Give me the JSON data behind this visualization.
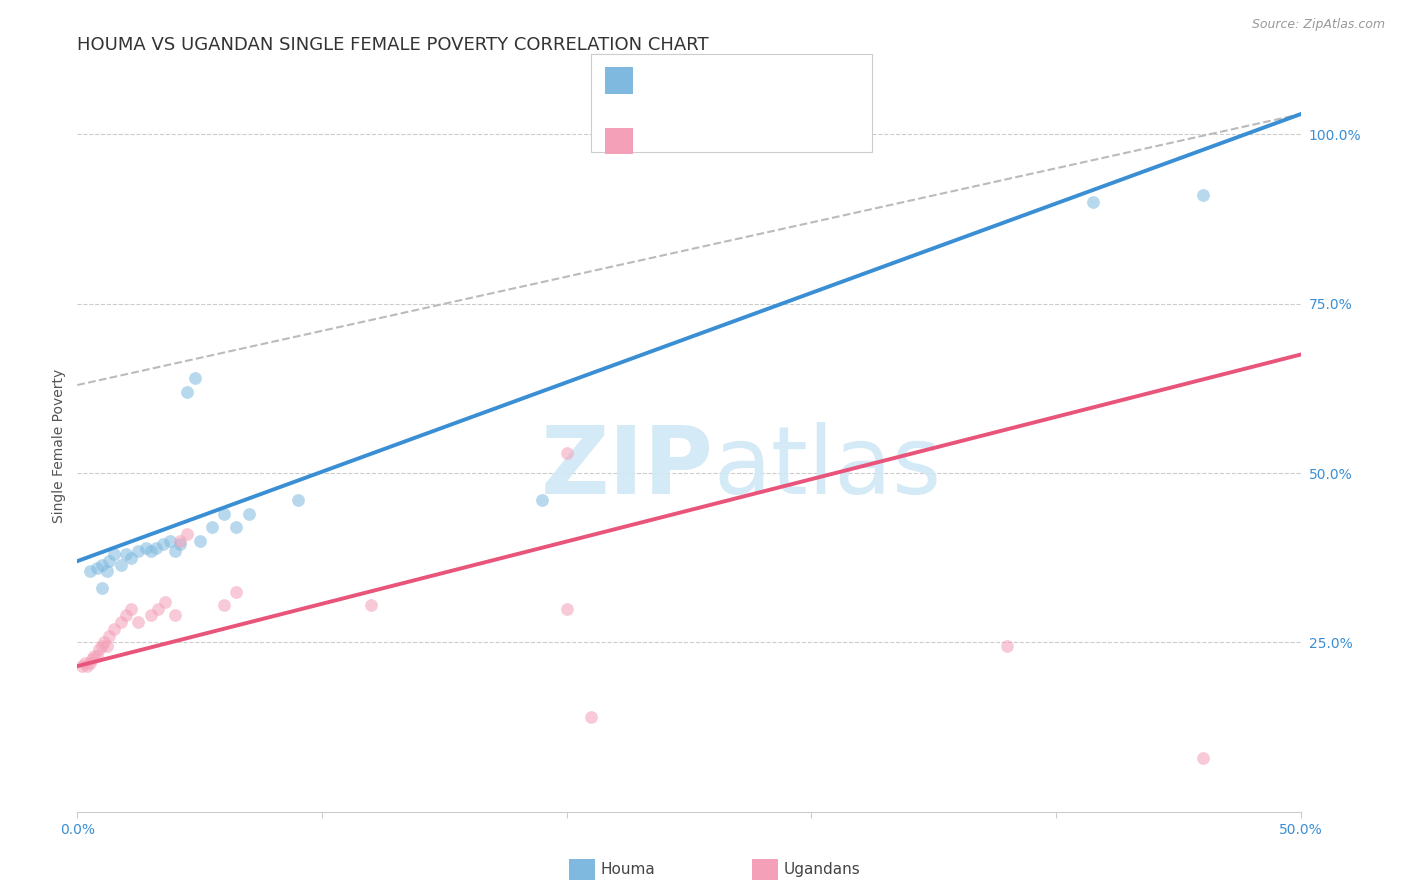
{
  "title": "HOUMA VS UGANDAN SINGLE FEMALE POVERTY CORRELATION CHART",
  "source": "Source: ZipAtlas.com",
  "ylabel": "Single Female Poverty",
  "xlim": [
    0,
    0.5
  ],
  "ylim": [
    0,
    1.08
  ],
  "legend_label_blue": "Houma",
  "legend_label_pink": "Ugandans",
  "blue_color": "#7fb9e0",
  "pink_color": "#f4a0b8",
  "blue_line_color": "#3a8fd4",
  "pink_line_color": "#e8547a",
  "dashed_line_color": "#bbbbbb",
  "blue_points_x": [
    0.005,
    0.008,
    0.01,
    0.01,
    0.012,
    0.013,
    0.015,
    0.018,
    0.02,
    0.022,
    0.025,
    0.028,
    0.03,
    0.032,
    0.035,
    0.038,
    0.04,
    0.042,
    0.045,
    0.048,
    0.05,
    0.055,
    0.06,
    0.065,
    0.07,
    0.09,
    0.19,
    0.415,
    0.46
  ],
  "blue_points_y": [
    0.355,
    0.36,
    0.33,
    0.365,
    0.355,
    0.37,
    0.38,
    0.365,
    0.38,
    0.375,
    0.385,
    0.39,
    0.385,
    0.39,
    0.395,
    0.4,
    0.385,
    0.395,
    0.62,
    0.64,
    0.4,
    0.42,
    0.44,
    0.42,
    0.44,
    0.46,
    0.46,
    0.9,
    0.91
  ],
  "pink_points_x": [
    0.002,
    0.003,
    0.004,
    0.005,
    0.006,
    0.007,
    0.008,
    0.009,
    0.01,
    0.011,
    0.012,
    0.013,
    0.015,
    0.018,
    0.02,
    0.022,
    0.025,
    0.03,
    0.033,
    0.036,
    0.04,
    0.042,
    0.045,
    0.06,
    0.065,
    0.12,
    0.2,
    0.2,
    0.21,
    0.38,
    0.46
  ],
  "pink_points_y": [
    0.215,
    0.22,
    0.215,
    0.22,
    0.225,
    0.23,
    0.23,
    0.24,
    0.245,
    0.25,
    0.245,
    0.26,
    0.27,
    0.28,
    0.29,
    0.3,
    0.28,
    0.29,
    0.3,
    0.31,
    0.29,
    0.4,
    0.41,
    0.305,
    0.325,
    0.305,
    0.3,
    0.53,
    0.14,
    0.245,
    0.08
  ],
  "blue_line_x": [
    0.0,
    0.5
  ],
  "blue_line_y": [
    0.37,
    1.03
  ],
  "pink_line_x": [
    0.0,
    0.5
  ],
  "pink_line_y": [
    0.215,
    0.675
  ],
  "dashed_line_x": [
    0.0,
    0.5
  ],
  "dashed_line_y": [
    0.63,
    1.03
  ],
  "watermark_zip": "ZIP",
  "watermark_atlas": "atlas",
  "grid_color": "#cccccc",
  "background_color": "#ffffff",
  "title_fontsize": 13,
  "axis_label_fontsize": 10,
  "tick_fontsize": 10,
  "legend_fontsize": 11,
  "marker_size": 85,
  "marker_alpha": 0.55
}
